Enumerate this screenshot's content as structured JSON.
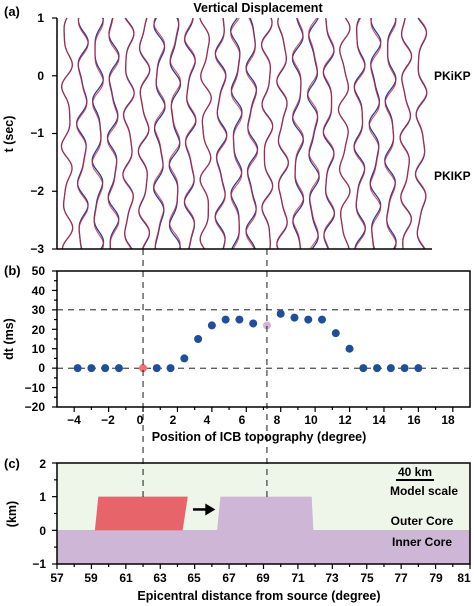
{
  "figure": {
    "title": "Vertical Displacement",
    "panel_labels": [
      "(a)",
      "(b)",
      "(c)"
    ],
    "colors": {
      "trace_blue": "#1f3fae",
      "trace_red": "#e02020",
      "marker_blue": "#1f4e9a",
      "marker_red": "#f07272",
      "marker_pink": "#d7b3d3",
      "topo_red": "#e8646b",
      "inner_core": "#cdb6d6",
      "outer_core": "#eef6ea"
    }
  },
  "chart_data": [
    {
      "type": "line",
      "panel": "(a)",
      "title": "Vertical Displacement",
      "ylabel": "t (sec)",
      "ylim": [
        -3,
        1
      ],
      "yticks": [
        "1",
        "0",
        "−1",
        "−2",
        "−3"
      ],
      "trace_count": 24,
      "phase_labels": [
        {
          "text": "PKiKP",
          "t": 0
        },
        {
          "text": "PKIKP",
          "t": -1.75
        }
      ],
      "series": [
        {
          "color": "#1f3fae"
        },
        {
          "color": "#e02020"
        }
      ]
    },
    {
      "type": "scatter",
      "panel": "(b)",
      "xlabel": "Position of ICB topography (degree)",
      "ylabel": "dt (ms)",
      "xlim": [
        -5,
        19
      ],
      "ylim": [
        -20,
        50
      ],
      "xticks": [
        "−4",
        "−2",
        "0",
        "2",
        "4",
        "6",
        "8",
        "10",
        "12",
        "14",
        "16",
        "18"
      ],
      "yticks": [
        "50",
        "40",
        "30",
        "20",
        "10",
        "0",
        "−10",
        "−20"
      ],
      "reference_lines_y": [
        0,
        30
      ],
      "points": [
        {
          "x": -3.8,
          "y": 0,
          "color": "#1f4e9a"
        },
        {
          "x": -3.0,
          "y": 0,
          "color": "#1f4e9a"
        },
        {
          "x": -2.2,
          "y": 0,
          "color": "#1f4e9a"
        },
        {
          "x": -1.4,
          "y": 0,
          "color": "#1f4e9a"
        },
        {
          "x": 0.0,
          "y": 0,
          "color": "#f07272"
        },
        {
          "x": 0.8,
          "y": 0,
          "color": "#1f4e9a"
        },
        {
          "x": 1.6,
          "y": 0,
          "color": "#1f4e9a"
        },
        {
          "x": 2.4,
          "y": 5,
          "color": "#1f4e9a"
        },
        {
          "x": 3.2,
          "y": 15,
          "color": "#1f4e9a"
        },
        {
          "x": 4.0,
          "y": 22,
          "color": "#1f4e9a"
        },
        {
          "x": 4.8,
          "y": 25,
          "color": "#1f4e9a"
        },
        {
          "x": 5.6,
          "y": 25,
          "color": "#1f4e9a"
        },
        {
          "x": 6.4,
          "y": 23,
          "color": "#1f4e9a"
        },
        {
          "x": 7.2,
          "y": 22,
          "color": "#d7b3d3"
        },
        {
          "x": 8.0,
          "y": 28,
          "color": "#1f4e9a"
        },
        {
          "x": 8.8,
          "y": 26,
          "color": "#1f4e9a"
        },
        {
          "x": 9.6,
          "y": 25,
          "color": "#1f4e9a"
        },
        {
          "x": 10.4,
          "y": 25,
          "color": "#1f4e9a"
        },
        {
          "x": 11.2,
          "y": 18,
          "color": "#1f4e9a"
        },
        {
          "x": 12.0,
          "y": 10,
          "color": "#1f4e9a"
        },
        {
          "x": 12.8,
          "y": 0,
          "color": "#1f4e9a"
        },
        {
          "x": 13.6,
          "y": 0,
          "color": "#1f4e9a"
        },
        {
          "x": 14.4,
          "y": 0,
          "color": "#1f4e9a"
        },
        {
          "x": 15.2,
          "y": 0,
          "color": "#1f4e9a"
        },
        {
          "x": 16.0,
          "y": 0,
          "color": "#1f4e9a"
        }
      ]
    },
    {
      "type": "area",
      "panel": "(c)",
      "xlabel": "Epicentral distance from source (degree)",
      "ylabel": "(km)",
      "xlim": [
        57,
        81
      ],
      "ylim": [
        -1,
        2
      ],
      "xticks": [
        "57",
        "59",
        "61",
        "63",
        "65",
        "67",
        "69",
        "71",
        "73",
        "75",
        "77",
        "79",
        "81"
      ],
      "yticks": [
        "2",
        "1",
        "0",
        "−1"
      ],
      "scale_bar": {
        "value": "40 km",
        "caption": "Model scale"
      },
      "regions": [
        {
          "label": "Outer Core",
          "color": "#eef6ea"
        },
        {
          "label": "Inner Core",
          "color": "#cdb6d6"
        }
      ],
      "topography": [
        {
          "x": [
            59.2,
            59.4,
            64.6,
            64.3
          ],
          "height": 1,
          "color": "#e8646b"
        },
        {
          "x": [
            66.3,
            66.5,
            71.8,
            71.9
          ],
          "height": 1,
          "color": "#cdb6d6"
        }
      ],
      "arrow": {
        "from": 64.9,
        "to": 66.2,
        "y": 0.62
      }
    }
  ]
}
